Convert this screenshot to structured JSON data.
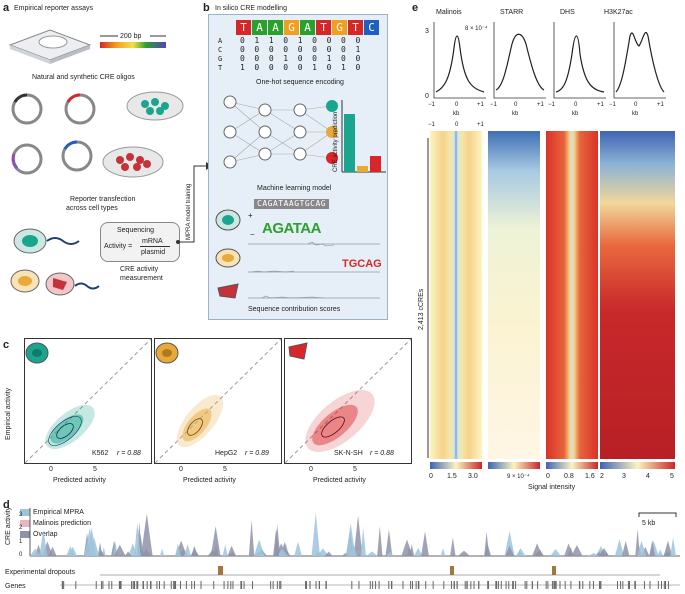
{
  "panel_a": {
    "label": "a",
    "title": "Empirical reporter assays",
    "scale": "200 bp",
    "oligos": "Natural and synthetic CRE oligos",
    "transfection_line1": "Reporter transfection",
    "transfection_line2": "across cell types",
    "formula_top": "Sequencing",
    "formula_left": "Activity =",
    "formula_num": "mRNA",
    "formula_den": "plasmid",
    "measure_line1": "CRE activity",
    "measure_line2": "measurement"
  },
  "panel_b": {
    "label": "b",
    "title": "In silico CRE modelling",
    "sequence": [
      "T",
      "A",
      "A",
      "G",
      "A",
      "T",
      "G",
      "T",
      "C"
    ],
    "seq_colors": [
      "#d62728",
      "#2ca02c",
      "#2ca02c",
      "#f0a020",
      "#2ca02c",
      "#d62728",
      "#f0a020",
      "#d62728",
      "#1f5fbf"
    ],
    "bases": [
      "A",
      "C",
      "G",
      "T"
    ],
    "onehot_rows": [
      "0 1 1 0 1 0 0 0 0",
      "0 0 0 0 0 0 0 0 1",
      "0 0 0 1 0 0 1 0 0",
      "1 0 0 0 0 1 0 1 0"
    ],
    "encoding": "One-hot sequence encoding",
    "pred_axis": "CRE activity prediction",
    "ml_model": "Machine learning model",
    "side_label": "MPRA model training",
    "motif_seq": "CAGATAAGTGCAG",
    "motif1": "AGATAA",
    "motif2": "TGCAG",
    "plus": "+",
    "minus": "−",
    "contrib": "Sequence contribution scores"
  },
  "panel_c": {
    "label": "c",
    "ylabel": "Empirical activity",
    "xlabel": "Predicted activity",
    "plots": [
      {
        "cell": "K562",
        "r_label": "r = 0.88",
        "color": "#1aa58f"
      },
      {
        "cell": "HepG2",
        "r_label": "r = 0.89",
        "color": "#e8a93a"
      },
      {
        "cell": "SK-N-SH",
        "r_label": "r = 0.88",
        "color": "#d9262b"
      }
    ],
    "tick0": "0",
    "tick5": "5"
  },
  "panel_d": {
    "label": "d",
    "legend": [
      "Empirical MPRA",
      "Malinois prediction",
      "Overlap"
    ],
    "legend_colors": [
      "#9ec4dc",
      "#e8b6c0",
      "#8e93a8"
    ],
    "ylabel": "CRE activity",
    "yticks": [
      "3",
      "2",
      "1",
      "0"
    ],
    "scale": "5 kb",
    "dropouts": "Experimental dropouts",
    "genes": "Genes"
  },
  "panel_e": {
    "label": "e",
    "tracks": [
      "Malinois",
      "STARR",
      "DHS",
      "H3K27ac"
    ],
    "top_y_max": "3",
    "top_y_min": "0",
    "starr_scale": "8 × 10⁻⁴",
    "x_ticks": [
      "−1",
      "0",
      "+1"
    ],
    "kb": "kb",
    "side": "2,413 cCREs",
    "colorbars": [
      [
        "0",
        "1.5",
        "3.0"
      ],
      [
        "9 × 10⁻⁴"
      ],
      [
        "0",
        "0.8",
        "1.6"
      ],
      [
        "2",
        "3",
        "4",
        "5"
      ]
    ],
    "signal": "Signal intensity"
  }
}
